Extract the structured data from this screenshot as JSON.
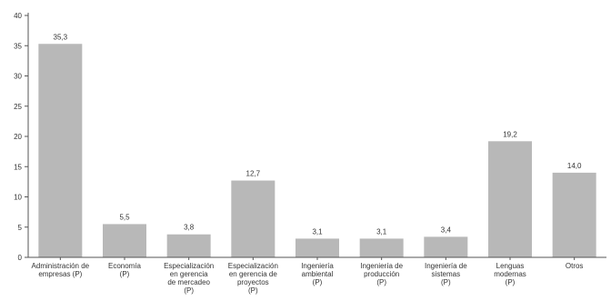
{
  "chart_data": {
    "type": "bar",
    "title": "",
    "xlabel": "",
    "ylabel": "",
    "ylim": [
      0,
      40
    ],
    "yticks": [
      0,
      5,
      10,
      15,
      20,
      25,
      30,
      35,
      40
    ],
    "grid": false,
    "legend": "none",
    "bar_color": "#b8b8b8",
    "axis_color": "#555555",
    "categories": [
      [
        "Administración de",
        "empresas (P)"
      ],
      [
        "Economía",
        "(P)"
      ],
      [
        "Especialización",
        "en gerencia",
        "de mercadeo",
        "(P)"
      ],
      [
        "Especialización",
        "en gerencia de",
        "proyectos",
        "(P)"
      ],
      [
        "Ingeniería",
        "ambiental",
        "(P)"
      ],
      [
        "Ingeniería de",
        "producción",
        "(P)"
      ],
      [
        "Ingeniería de",
        "sistemas",
        "(P)"
      ],
      [
        "Lenguas",
        "modernas",
        "(P)"
      ],
      [
        "Otros"
      ]
    ],
    "values": [
      35.3,
      5.5,
      3.8,
      12.7,
      3.1,
      3.1,
      3.4,
      19.2,
      14.0
    ],
    "value_labels": [
      "35,3",
      "5,5",
      "3,8",
      "12,7",
      "3,1",
      "3,1",
      "3,4",
      "19,2",
      "14,0"
    ]
  }
}
